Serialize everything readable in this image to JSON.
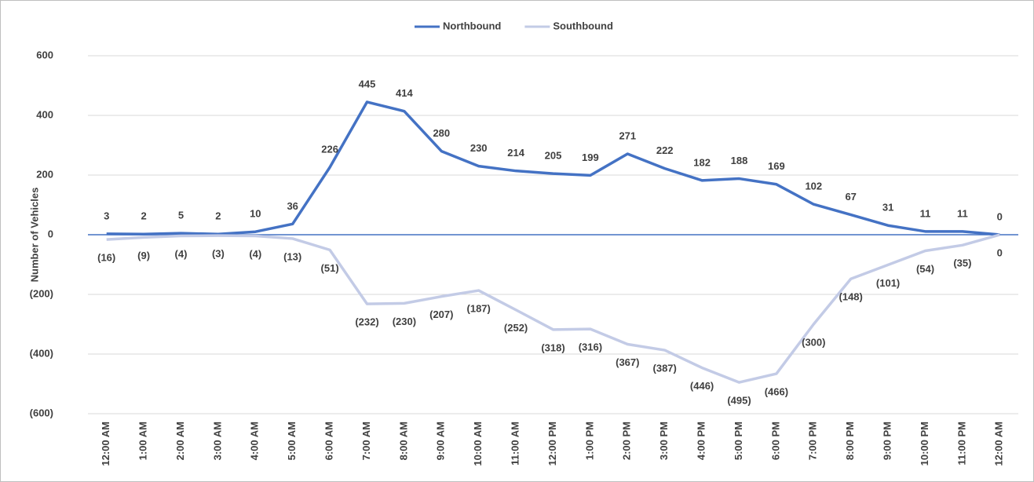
{
  "chart_data": {
    "type": "line",
    "y_label": "Number of Vehicles",
    "categories": [
      "12:00 AM",
      "1:00 AM",
      "2:00 AM",
      "3:00 AM",
      "4:00 AM",
      "5:00 AM",
      "6:00 AM",
      "7:00 AM",
      "8:00 AM",
      "9:00 AM",
      "10:00 AM",
      "11:00 AM",
      "12:00 PM",
      "1:00 PM",
      "2:00 PM",
      "3:00 PM",
      "4:00 PM",
      "5:00 PM",
      "6:00 PM",
      "7:00 PM",
      "8:00 PM",
      "9:00 PM",
      "10:00 PM",
      "11:00 PM",
      "12:00 AM"
    ],
    "series": [
      {
        "name": "Northbound",
        "color": "#4472c4",
        "values": [
          3,
          2,
          5,
          2,
          10,
          36,
          226,
          445,
          414,
          280,
          230,
          214,
          205,
          199,
          271,
          222,
          182,
          188,
          169,
          102,
          67,
          31,
          11,
          11,
          0
        ]
      },
      {
        "name": "Southbound",
        "color": "#c3cbe6",
        "values": [
          -16,
          -9,
          -4,
          -3,
          -4,
          -13,
          -51,
          -232,
          -230,
          -207,
          -187,
          -252,
          -318,
          -316,
          -367,
          -387,
          -446,
          -495,
          -466,
          -300,
          -148,
          -101,
          -54,
          -35,
          0
        ],
        "value_labels": [
          "(16)",
          "(9)",
          "(4)",
          "(3)",
          "(4)",
          "(13)",
          "(51)",
          "(232)",
          "(230)",
          "(207)",
          "(187)",
          "(252)",
          "(318)",
          "(316)",
          "(367)",
          "(387)",
          "(446)",
          "(495)",
          "(466)",
          "(300)",
          "(148)",
          "(101)",
          "(54)",
          "(35)",
          "0"
        ]
      }
    ],
    "ylim": [
      -600,
      600
    ],
    "yticks": [
      {
        "value": -600,
        "label": "(600)"
      },
      {
        "value": -400,
        "label": "(400)"
      },
      {
        "value": -200,
        "label": "(200)"
      },
      0,
      200,
      400,
      600
    ],
    "grid": true,
    "legend": "top"
  }
}
